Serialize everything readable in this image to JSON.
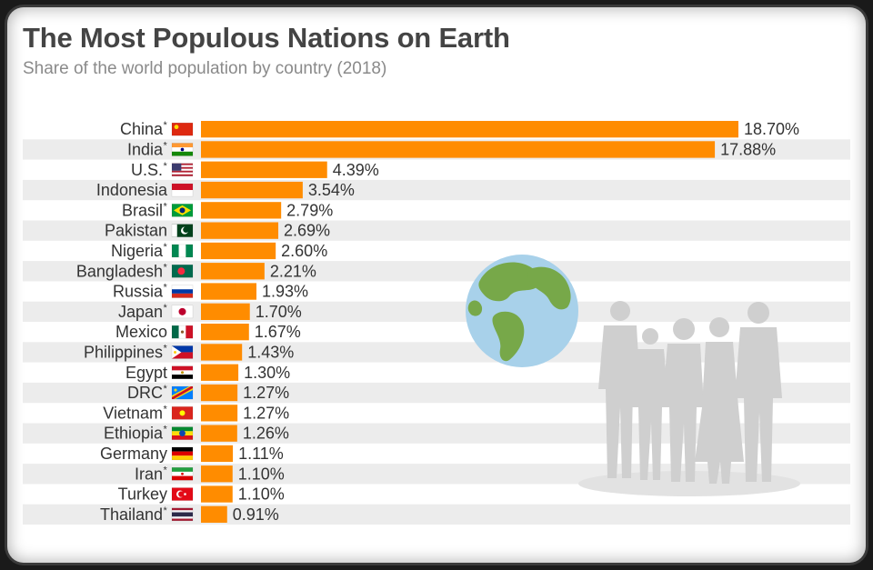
{
  "title": "The Most Populous Nations on Earth",
  "subtitle": "Share of the world population by country (2018)",
  "colors": {
    "bar": "#ff8c00",
    "stripe": "#ececec",
    "text": "#333333"
  },
  "chart_data": {
    "type": "bar",
    "orientation": "horizontal",
    "title": "The Most Populous Nations on Earth",
    "subtitle": "Share of the world population by country (2018)",
    "unit": "%",
    "categories": [
      "China",
      "India",
      "U.S.",
      "Indonesia",
      "Brasil",
      "Pakistan",
      "Nigeria",
      "Bangladesh",
      "Russia",
      "Japan",
      "Mexico",
      "Philippines",
      "Egypt",
      "DRC",
      "Vietnam",
      "Ethiopia",
      "Germany",
      "Iran",
      "Turkey",
      "Thailand"
    ],
    "asterisk": [
      true,
      true,
      true,
      false,
      true,
      false,
      true,
      true,
      true,
      true,
      false,
      true,
      false,
      true,
      true,
      true,
      false,
      true,
      false,
      true
    ],
    "values": [
      18.7,
      17.88,
      4.39,
      3.54,
      2.79,
      2.69,
      2.6,
      2.21,
      1.93,
      1.7,
      1.67,
      1.43,
      1.3,
      1.27,
      1.27,
      1.26,
      1.11,
      1.1,
      1.1,
      0.91
    ],
    "value_labels": [
      "18.70%",
      "17.88%",
      "4.39%",
      "3.54%",
      "2.79%",
      "2.69%",
      "2.60%",
      "2.21%",
      "1.93%",
      "1.70%",
      "1.67%",
      "1.43%",
      "1.30%",
      "1.27%",
      "1.27%",
      "1.26%",
      "1.11%",
      "1.10%",
      "1.10%",
      "0.91%"
    ],
    "flag_icons": [
      "china-flag-icon",
      "india-flag-icon",
      "usa-flag-icon",
      "indonesia-flag-icon",
      "brazil-flag-icon",
      "pakistan-flag-icon",
      "nigeria-flag-icon",
      "bangladesh-flag-icon",
      "russia-flag-icon",
      "japan-flag-icon",
      "mexico-flag-icon",
      "philippines-flag-icon",
      "egypt-flag-icon",
      "drc-flag-icon",
      "vietnam-flag-icon",
      "ethiopia-flag-icon",
      "germany-flag-icon",
      "iran-flag-icon",
      "turkey-flag-icon",
      "thailand-flag-icon"
    ],
    "grid": false,
    "legend": "none"
  },
  "decorations": [
    "globe-icon",
    "people-silhouette-icon"
  ]
}
